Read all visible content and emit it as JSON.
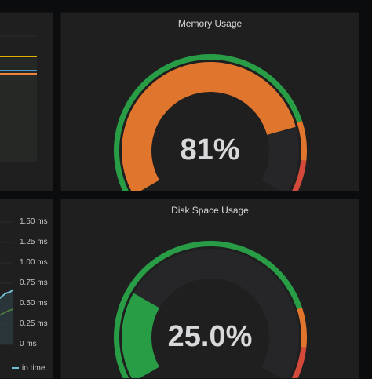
{
  "memory_panel": {
    "title": "Memory Usage",
    "value_text": "81%",
    "value": 81,
    "colors": {
      "base": "#299c46",
      "fill": "#e0752d",
      "warn": "#e0752d",
      "crit": "#d44a3a",
      "track": "#262628"
    }
  },
  "disk_panel": {
    "title": "Disk Space Usage",
    "value_text": "25.0%",
    "value": 25,
    "colors": {
      "base": "#299c46",
      "fill": "#299c46",
      "warn": "#e0752d",
      "crit": "#d44a3a",
      "track": "#262628"
    }
  },
  "io_panel": {
    "y_ticks": [
      "1.50 ms",
      "1.25 ms",
      "1.00 ms",
      "0.75 ms",
      "0.50 ms",
      "0.25 ms",
      "0 ms"
    ],
    "legend_label": "io time",
    "series_color": "#73bfd8"
  },
  "top_left_panel": {
    "series_colors": [
      "#e0b400",
      "#5195ce",
      "#ef843c"
    ]
  }
}
